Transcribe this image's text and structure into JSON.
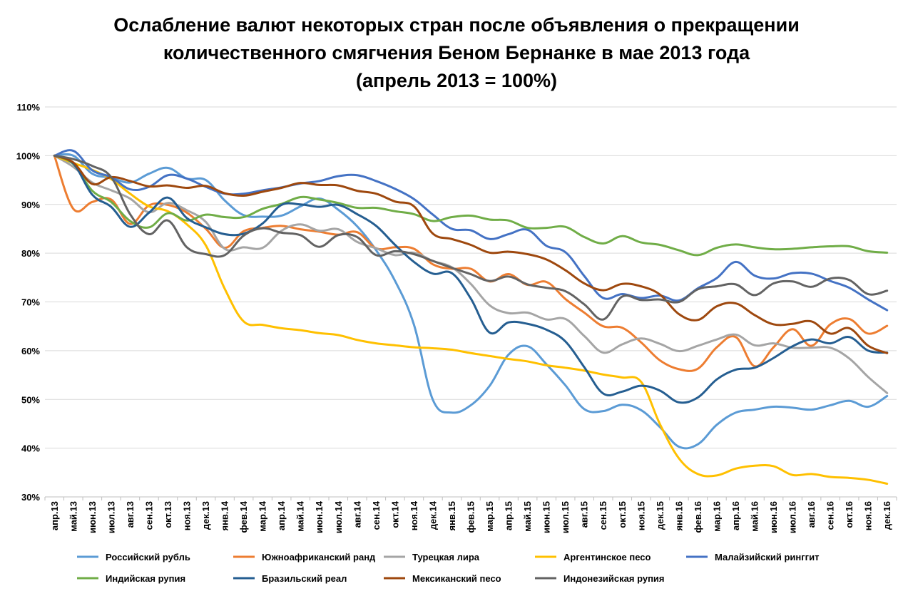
{
  "chart_data": {
    "type": "line",
    "title_lines": [
      "Ослабление валют некоторых стран после объявления о прекращении",
      "количественного смягчения Беном Бернанке в мае 2013 года",
      "(апрель 2013 = 100%)"
    ],
    "xlabel": "",
    "ylabel": "",
    "ylim": [
      30,
      110
    ],
    "yticks": [
      30,
      40,
      50,
      60,
      70,
      80,
      90,
      100,
      110
    ],
    "ytick_labels": [
      "30%",
      "40%",
      "50%",
      "60%",
      "70%",
      "80%",
      "90%",
      "100%",
      "110%"
    ],
    "grid": true,
    "legend_position": "bottom",
    "categories": [
      "апр.13",
      "май.13",
      "июн.13",
      "июл.13",
      "авг.13",
      "сен.13",
      "окт.13",
      "ноя.13",
      "дек.13",
      "янв.14",
      "фев.14",
      "мар.14",
      "апр.14",
      "май.14",
      "июн.14",
      "июл.14",
      "авг.14",
      "сен.14",
      "окт.14",
      "ноя.14",
      "дек.14",
      "янв.15",
      "фев.15",
      "мар.15",
      "апр.15",
      "май.15",
      "июн.15",
      "июл.15",
      "авг.15",
      "сен.15",
      "окт.15",
      "ноя.15",
      "дек.15",
      "янв.16",
      "фев.16",
      "мар.16",
      "апр.16",
      "май.16",
      "июн.16",
      "июл.16",
      "авг.16",
      "сен.16",
      "окт.16",
      "ноя.16",
      "дек.16"
    ],
    "series": [
      {
        "name": "Российский рубль",
        "color": "#5b9bd5",
        "values": [
          100,
          100,
          96.3,
          95.5,
          94.5,
          96.3,
          97.5,
          95.3,
          95,
          90.8,
          87.8,
          87.5,
          87.7,
          89.6,
          91.2,
          88.9,
          85.5,
          80.6,
          74.3,
          65.3,
          49.9,
          47.3,
          48.8,
          52.8,
          59.2,
          60.9,
          57.2,
          52.9,
          48.0,
          47.6,
          48.9,
          47.8,
          44.3,
          40.3,
          40.8,
          44.8,
          47.3,
          47.9,
          48.5,
          48.3,
          47.9,
          48.8,
          49.7,
          48.5,
          50.7
        ]
      },
      {
        "name": "Южноафриканский ранд",
        "color": "#ed7d31",
        "values": [
          100,
          89.1,
          90.5,
          91.0,
          86.0,
          89.8,
          89.9,
          88.3,
          85.0,
          81.1,
          84.5,
          85.2,
          85.6,
          84.9,
          84.4,
          83.8,
          84.3,
          81.0,
          81.2,
          80.9,
          77.7,
          76.8,
          76.8,
          74.2,
          75.7,
          73.5,
          74.1,
          70.6,
          67.8,
          65.0,
          64.7,
          61.7,
          58.0,
          56.2,
          56.3,
          60.7,
          62.8,
          56.8,
          60.7,
          64.4,
          61.0,
          65.4,
          66.5,
          63.5,
          65.1
        ]
      },
      {
        "name": "Турецкая лира",
        "color": "#a5a5a5",
        "values": [
          100,
          97.7,
          94.5,
          92.9,
          91.2,
          88.4,
          90.3,
          88.8,
          86.4,
          80.9,
          81.2,
          81.1,
          84.6,
          85.9,
          84.6,
          84.9,
          82.3,
          81.0,
          79.6,
          80.1,
          78.4,
          77.1,
          73.7,
          69.3,
          67.7,
          67.8,
          66.4,
          66.5,
          63.0,
          59.6,
          61.3,
          62.5,
          61.4,
          59.9,
          61.0,
          62.3,
          63.3,
          61.1,
          61.5,
          60.6,
          60.6,
          60.6,
          58.4,
          54.6,
          51.3
        ]
      },
      {
        "name": "Аргентинское песо",
        "color": "#ffc000",
        "values": [
          100,
          98.5,
          97.1,
          95.2,
          92.2,
          89.6,
          88.6,
          85.9,
          81.6,
          72.7,
          66.0,
          65.3,
          64.6,
          64.2,
          63.6,
          63.2,
          62.2,
          61.5,
          61.1,
          60.7,
          60.5,
          60.2,
          59.5,
          58.9,
          58.3,
          57.8,
          57.0,
          56.5,
          55.9,
          55.1,
          54.5,
          53.6,
          44.9,
          37.9,
          34.7,
          34.4,
          35.8,
          36.4,
          36.3,
          34.5,
          34.7,
          34.1,
          33.9,
          33.5,
          32.7
        ]
      },
      {
        "name": "Малайзийский ринггит",
        "color": "#4472c4",
        "values": [
          100,
          101,
          97.0,
          95.6,
          93.1,
          93.6,
          96.0,
          95.3,
          93.6,
          92.2,
          92.2,
          92.9,
          93.5,
          94.3,
          94.8,
          95.8,
          96.0,
          94.8,
          93.2,
          91.1,
          87.9,
          85.0,
          84.7,
          82.9,
          83.9,
          84.8,
          81.5,
          80.2,
          75.3,
          70.8,
          71.6,
          70.8,
          71.3,
          70.3,
          72.8,
          74.9,
          78.2,
          75.4,
          74.8,
          75.9,
          75.8,
          74.3,
          72.9,
          70.5,
          68.3
        ]
      },
      {
        "name": "Индийская рупия",
        "color": "#70ad47",
        "values": [
          100,
          98.3,
          92.8,
          90.5,
          86.6,
          85.3,
          88.2,
          86.7,
          87.9,
          87.4,
          87.4,
          89.1,
          90.1,
          91.5,
          91.0,
          90.3,
          89.3,
          89.3,
          88.6,
          88.0,
          86.6,
          87.4,
          87.7,
          86.9,
          86.7,
          85.2,
          85.2,
          85.4,
          83.3,
          82.0,
          83.5,
          82.2,
          81.7,
          80.6,
          79.6,
          81.1,
          81.8,
          81.2,
          80.8,
          80.9,
          81.2,
          81.4,
          81.4,
          80.4,
          80.1
        ]
      },
      {
        "name": "Бразильский реал",
        "color": "#255e91",
        "values": [
          100,
          98.4,
          92.0,
          89.5,
          85.4,
          88.3,
          91.4,
          87.2,
          85.3,
          83.9,
          84.0,
          86.1,
          89.9,
          90.0,
          89.5,
          89.9,
          88.0,
          85.6,
          81.7,
          78.2,
          75.8,
          75.9,
          70.7,
          63.7,
          65.8,
          65.5,
          64.3,
          61.9,
          56.6,
          51.2,
          51.6,
          52.8,
          51.8,
          49.4,
          50.4,
          54.1,
          56.1,
          56.5,
          58.5,
          60.9,
          62.3,
          61.5,
          62.8,
          60.0,
          59.6
        ]
      },
      {
        "name": "Мексиканский песо",
        "color": "#9e480e",
        "values": [
          100,
          98.6,
          94.2,
          95.6,
          94.8,
          93.7,
          93.9,
          93.4,
          93.8,
          92.3,
          91.8,
          92.6,
          93.4,
          94.4,
          94.0,
          93.9,
          92.8,
          92.2,
          90.6,
          89.6,
          84.0,
          82.9,
          81.7,
          80.1,
          80.3,
          79.8,
          78.7,
          76.5,
          73.8,
          72.4,
          73.7,
          73.2,
          71.5,
          67.5,
          66.3,
          69.1,
          69.7,
          67.3,
          65.4,
          65.5,
          66.0,
          63.5,
          64.6,
          61.0,
          59.5
        ]
      },
      {
        "name": "Индонезийская рупия",
        "color": "#636363",
        "values": [
          100,
          99.3,
          97.9,
          95.6,
          88.0,
          83.9,
          86.7,
          81.2,
          79.8,
          79.6,
          83.6,
          85.1,
          84.2,
          83.7,
          81.3,
          83.7,
          83.3,
          79.6,
          80.4,
          79.8,
          78.4,
          77.0,
          75.7,
          74.3,
          75.2,
          73.6,
          72.9,
          72.2,
          69.5,
          66.4,
          71.1,
          70.4,
          70.5,
          70.0,
          72.6,
          73.2,
          73.6,
          71.4,
          73.8,
          74.2,
          73.1,
          74.8,
          74.5,
          71.6,
          72.3
        ]
      }
    ]
  }
}
